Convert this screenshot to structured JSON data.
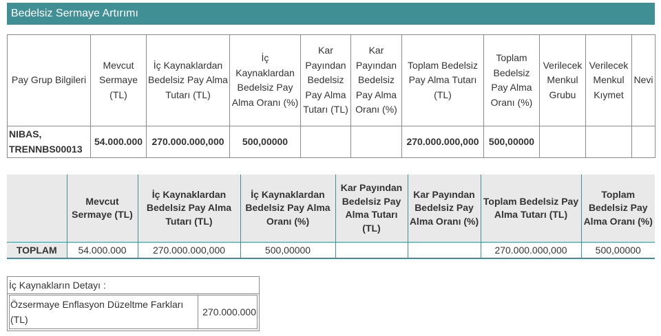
{
  "title": "Bedelsiz Sermaye Artırımı",
  "table1": {
    "headers": [
      "Pay Grup Bilgileri",
      "Mevcut Sermaye (TL)",
      "İç Kaynaklardan Bedelsiz Pay Alma Tutarı (TL)",
      "İç Kaynaklardan Bedelsiz Pay Alma Oranı (%)",
      "Kar Payından Bedelsiz Pay Alma Tutarı (TL)",
      "Kar Payından Bedelsiz Pay Alma Oranı (%)",
      "Toplam Bedelsiz Pay Alma Tutarı (TL)",
      "Toplam Bedelsiz Pay Alma Oranı (%)",
      "Verilecek Menkul Grubu",
      "Verilecek Menkul Kıymet",
      "Nevi"
    ],
    "row": [
      "NIBAS, TRENNBS00013",
      "54.000.000",
      "270.000.000,000",
      "500,00000",
      "",
      "",
      "270.000.000,000",
      "500,00000",
      "",
      "",
      ""
    ]
  },
  "table2": {
    "headers": [
      "",
      "Mevcut Sermaye (TL)",
      "İç Kaynaklardan Bedelsiz Pay Alma Tutarı (TL)",
      "İç Kaynaklardan Bedelsiz Pay Alma Oranı (%)",
      "Kar Payından Bedelsiz Pay Alma Tutarı (TL)",
      "Kar Payından Bedelsiz Pay Alma Oranı (%)",
      "Toplam Bedelsiz Pay Alma Tutarı (TL)",
      "Toplam Bedelsiz Pay Alma Oranı (%)"
    ],
    "row": [
      "TOPLAM",
      "54.000.000",
      "270.000.000,000",
      "500,00000",
      "",
      "",
      "270.000.000,000",
      "500,00000"
    ]
  },
  "detail": {
    "title": "İç Kaynakların Detayı :",
    "label": "Özsermaye Enflasyon Düzeltme Farkları (TL)",
    "value": "270.000.000"
  },
  "colors": {
    "accent": "#3f8f95"
  }
}
